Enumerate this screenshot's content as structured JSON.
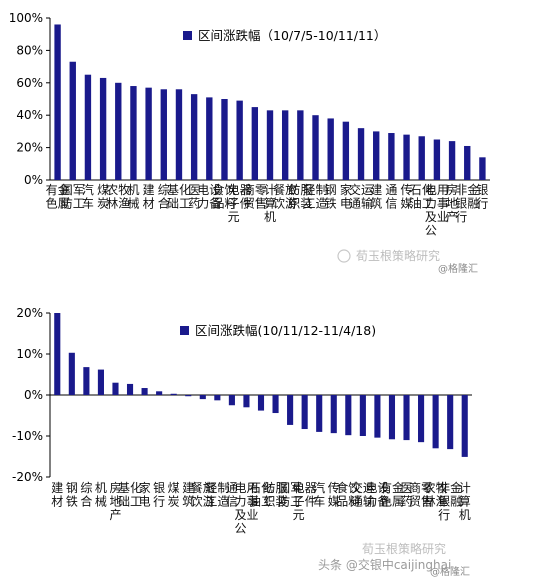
{
  "chart_data": [
    {
      "type": "bar",
      "legend": "区间涨跌幅（10/7/5-10/11/11）",
      "ylim": [
        0,
        100
      ],
      "yticks": [
        0,
        20,
        40,
        60,
        80,
        100
      ],
      "ytick_labels": [
        "0%",
        "20%",
        "40%",
        "60%",
        "80%",
        "100%"
      ],
      "color": "#1a1a8c",
      "categories": [
        "有色金属",
        "国防军工",
        "汽车",
        "煤炭",
        "农林牧渔",
        "机械",
        "建材",
        "综合",
        "基础化工",
        "医药",
        "电力设备",
        "食品饮料",
        "电子元器件",
        "商贸零售",
        "计算机",
        "餐饮旅游",
        "纺织服装",
        "轻工制造",
        "钢铁",
        "家电",
        "交通运输",
        "建筑",
        "通信",
        "传媒",
        "石油化工",
        "电力及公用事业",
        "房地产",
        "非银行金融",
        "银行"
      ],
      "values": [
        96,
        73,
        65,
        63,
        60,
        58,
        57,
        56,
        56,
        53,
        51,
        50,
        49,
        45,
        43,
        43,
        43,
        40,
        38,
        36,
        32,
        30,
        29,
        28,
        27,
        25,
        24,
        21,
        14
      ]
    },
    {
      "type": "bar",
      "legend": "区间涨跌幅(10/11/12-11/4/18)",
      "ylim": [
        -20,
        20
      ],
      "yticks": [
        -20,
        -10,
        0,
        10,
        20
      ],
      "ytick_labels": [
        "-20%",
        "-10%",
        "0%",
        "10%",
        "20%"
      ],
      "color": "#1a1a8c",
      "categories": [
        "建材",
        "钢铁",
        "综合",
        "机械",
        "房地产",
        "基础化工",
        "家电",
        "银行",
        "煤炭",
        "建筑",
        "餐饮旅游",
        "轻工制造",
        "通信",
        "电力及公用事业",
        "石油化工",
        "纺织服装",
        "国防军工",
        "电子元器件",
        "汽车",
        "传媒",
        "食品饮料",
        "交通运输",
        "电力设备",
        "有色金属",
        "医药",
        "商贸零售",
        "农林牧渔",
        "非银行金融",
        "计算机"
      ],
      "values": [
        20,
        10.3,
        6.8,
        6.2,
        3,
        2.7,
        1.7,
        0.9,
        0.3,
        -0.3,
        -1,
        -1.3,
        -2.5,
        -3,
        -3.8,
        -4.4,
        -7.3,
        -8.3,
        -9,
        -9.3,
        -9.8,
        -10,
        -10.4,
        -10.8,
        -11,
        -11.5,
        -13,
        -13.2,
        -15.1
      ]
    }
  ],
  "watermarks": {
    "top_brand": "荀玉根策略研究",
    "top_small": "@格隆汇",
    "bottom_brand": "荀玉根策略研究",
    "bottom_small": "@格隆汇",
    "bottom_footer": "头条 @交银中caijinghai"
  }
}
